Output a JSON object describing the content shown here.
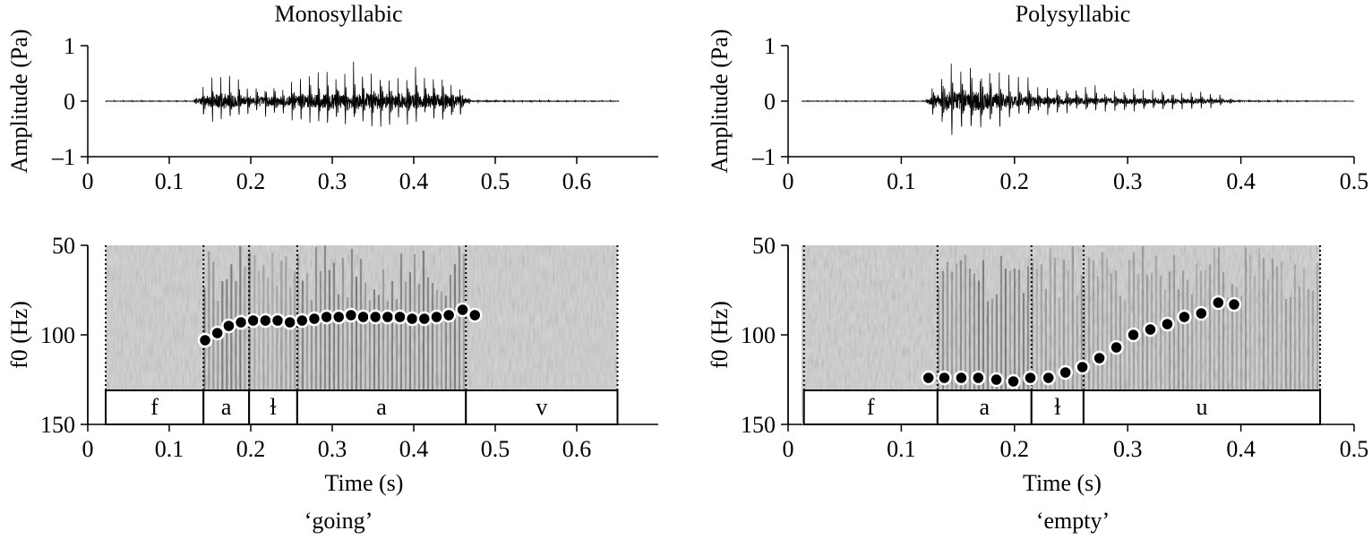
{
  "chart_data": [
    {
      "panel": "Monosyllabic",
      "title": "Monosyllabic",
      "caption": "‘going’",
      "type": "line",
      "subtype": "waveform",
      "ylabel": "Amplitude (Pa)",
      "xlim": [
        0,
        0.7
      ],
      "ylim": [
        1,
        -1
      ],
      "y_inverted": true,
      "xticks": [
        0,
        0.1,
        0.2,
        0.3,
        0.4,
        0.5,
        0.6
      ],
      "xtick_labels": [
        "0",
        "0.1",
        "0.2",
        "0.3",
        "0.4",
        "0.5",
        "0.6"
      ],
      "yticks": [
        -1,
        0,
        1
      ],
      "ytick_labels": [
        "–1",
        "0",
        "1"
      ],
      "envelope": [
        [
          0.02,
          0.02
        ],
        [
          0.13,
          0.02
        ],
        [
          0.14,
          0.45
        ],
        [
          0.16,
          0.75
        ],
        [
          0.2,
          0.4
        ],
        [
          0.25,
          0.55
        ],
        [
          0.3,
          0.78
        ],
        [
          0.35,
          0.78
        ],
        [
          0.4,
          0.72
        ],
        [
          0.44,
          0.6
        ],
        [
          0.46,
          0.5
        ],
        [
          0.47,
          0.04
        ],
        [
          0.65,
          0.02
        ]
      ]
    },
    {
      "panel": "Polysyllabic",
      "title": "Polysyllabic",
      "caption": "‘empty’",
      "type": "line",
      "subtype": "waveform",
      "ylabel": "Amplitude (Pa)",
      "xlim": [
        0,
        0.5
      ],
      "ylim": [
        1,
        -1
      ],
      "y_inverted": true,
      "xticks": [
        0,
        0.1,
        0.2,
        0.3,
        0.4,
        0.5
      ],
      "xtick_labels": [
        "0",
        "0.1",
        "0.2",
        "0.3",
        "0.4",
        "0.5"
      ],
      "yticks": [
        -1,
        0,
        1
      ],
      "ytick_labels": [
        "–1",
        "0",
        "1"
      ],
      "envelope": [
        [
          0.02,
          0.02
        ],
        [
          0.12,
          0.02
        ],
        [
          0.13,
          0.6
        ],
        [
          0.14,
          0.95
        ],
        [
          0.17,
          1.0
        ],
        [
          0.2,
          0.55
        ],
        [
          0.25,
          0.35
        ],
        [
          0.3,
          0.3
        ],
        [
          0.35,
          0.25
        ],
        [
          0.38,
          0.2
        ],
        [
          0.4,
          0.04
        ],
        [
          0.5,
          0.01
        ]
      ]
    },
    {
      "panel": "Monosyllabic",
      "type": "scatter",
      "subtype": "spectrogram_f0",
      "xlabel": "Time (s)",
      "ylabel": "f0 (Hz)",
      "xlim": [
        0,
        0.7
      ],
      "ylim": [
        50,
        150
      ],
      "xticks": [
        0,
        0.1,
        0.2,
        0.3,
        0.4,
        0.5,
        0.6
      ],
      "xtick_labels": [
        "0",
        "0.1",
        "0.2",
        "0.3",
        "0.4",
        "0.5",
        "0.6"
      ],
      "yticks": [
        50,
        100,
        150
      ],
      "ytick_labels": [
        "50",
        "100",
        "150"
      ],
      "spectrogram_range": [
        0.022,
        0.65
      ],
      "boundaries": [
        0.022,
        0.142,
        0.198,
        0.257,
        0.464,
        0.65
      ],
      "segments": [
        {
          "label": "f",
          "start": 0.022,
          "end": 0.142
        },
        {
          "label": "a",
          "start": 0.142,
          "end": 0.198
        },
        {
          "label": "ɫ",
          "start": 0.198,
          "end": 0.257
        },
        {
          "label": "a",
          "start": 0.257,
          "end": 0.464
        },
        {
          "label": "v",
          "start": 0.464,
          "end": 0.65
        }
      ],
      "f0_points": [
        {
          "x": 0.144,
          "y": 103
        },
        {
          "x": 0.159,
          "y": 99
        },
        {
          "x": 0.173,
          "y": 95
        },
        {
          "x": 0.188,
          "y": 93
        },
        {
          "x": 0.203,
          "y": 92
        },
        {
          "x": 0.218,
          "y": 92
        },
        {
          "x": 0.233,
          "y": 92
        },
        {
          "x": 0.248,
          "y": 93
        },
        {
          "x": 0.263,
          "y": 92
        },
        {
          "x": 0.278,
          "y": 91
        },
        {
          "x": 0.293,
          "y": 90
        },
        {
          "x": 0.308,
          "y": 90
        },
        {
          "x": 0.323,
          "y": 89
        },
        {
          "x": 0.338,
          "y": 90
        },
        {
          "x": 0.353,
          "y": 90
        },
        {
          "x": 0.368,
          "y": 90
        },
        {
          "x": 0.383,
          "y": 90
        },
        {
          "x": 0.398,
          "y": 91
        },
        {
          "x": 0.413,
          "y": 91
        },
        {
          "x": 0.428,
          "y": 90
        },
        {
          "x": 0.443,
          "y": 89
        },
        {
          "x": 0.46,
          "y": 86
        },
        {
          "x": 0.475,
          "y": 89
        }
      ]
    },
    {
      "panel": "Polysyllabic",
      "type": "scatter",
      "subtype": "spectrogram_f0",
      "xlabel": "Time (s)",
      "ylabel": "f0 (Hz)",
      "xlim": [
        0,
        0.5
      ],
      "ylim": [
        50,
        150
      ],
      "xticks": [
        0,
        0.1,
        0.2,
        0.3,
        0.4,
        0.5
      ],
      "xtick_labels": [
        "0",
        "0.1",
        "0.2",
        "0.3",
        "0.4",
        "0.5"
      ],
      "yticks": [
        50,
        100,
        150
      ],
      "ytick_labels": [
        "50",
        "100",
        "150"
      ],
      "spectrogram_range": [
        0.012,
        0.47
      ],
      "boundaries": [
        0.014,
        0.132,
        0.215,
        0.261,
        0.47
      ],
      "segments": [
        {
          "label": "f",
          "start": 0.014,
          "end": 0.132
        },
        {
          "label": "a",
          "start": 0.132,
          "end": 0.215
        },
        {
          "label": "ɫ",
          "start": 0.215,
          "end": 0.261
        },
        {
          "label": "u",
          "start": 0.261,
          "end": 0.47
        }
      ],
      "f0_points": [
        {
          "x": 0.124,
          "y": 124
        },
        {
          "x": 0.138,
          "y": 124
        },
        {
          "x": 0.153,
          "y": 124
        },
        {
          "x": 0.168,
          "y": 124
        },
        {
          "x": 0.184,
          "y": 125
        },
        {
          "x": 0.199,
          "y": 126
        },
        {
          "x": 0.214,
          "y": 124
        },
        {
          "x": 0.23,
          "y": 124
        },
        {
          "x": 0.245,
          "y": 121
        },
        {
          "x": 0.26,
          "y": 118
        },
        {
          "x": 0.275,
          "y": 113
        },
        {
          "x": 0.29,
          "y": 107
        },
        {
          "x": 0.305,
          "y": 100
        },
        {
          "x": 0.32,
          "y": 97
        },
        {
          "x": 0.335,
          "y": 94
        },
        {
          "x": 0.35,
          "y": 90
        },
        {
          "x": 0.365,
          "y": 88
        },
        {
          "x": 0.38,
          "y": 82
        },
        {
          "x": 0.394,
          "y": 83
        }
      ]
    }
  ]
}
